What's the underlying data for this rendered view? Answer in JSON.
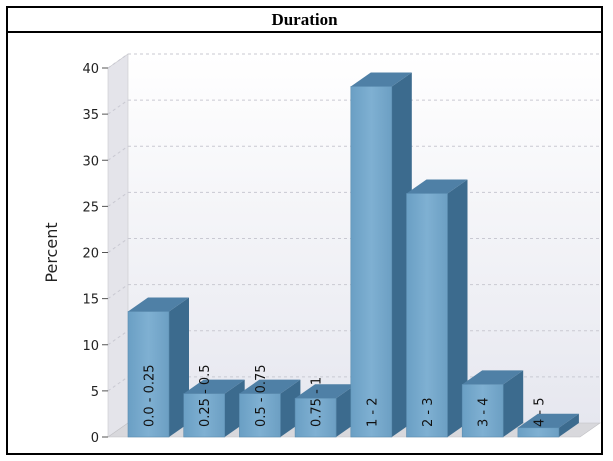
{
  "chart_data": {
    "type": "bar",
    "title": "Duration",
    "xlabel": "",
    "ylabel": "Percent",
    "ylim": [
      0,
      40
    ],
    "yticks": [
      0,
      5,
      10,
      15,
      20,
      25,
      30,
      35,
      40
    ],
    "grid": true,
    "style": "3d",
    "categories": [
      "0.0 - 0.25",
      "0.25 - 0.5",
      "0.5 - 0.75",
      "0.75 - 1",
      "1 - 2",
      "2 - 3",
      "3 - 4",
      "4 - 5"
    ],
    "values": [
      13.6,
      4.7,
      4.7,
      4.2,
      38.0,
      26.4,
      5.7,
      1.0
    ],
    "colors": {
      "front": "#76a9cc",
      "side": "#3c6b8e",
      "top": "#4f80a6",
      "wall": "#e4e4ea"
    }
  }
}
